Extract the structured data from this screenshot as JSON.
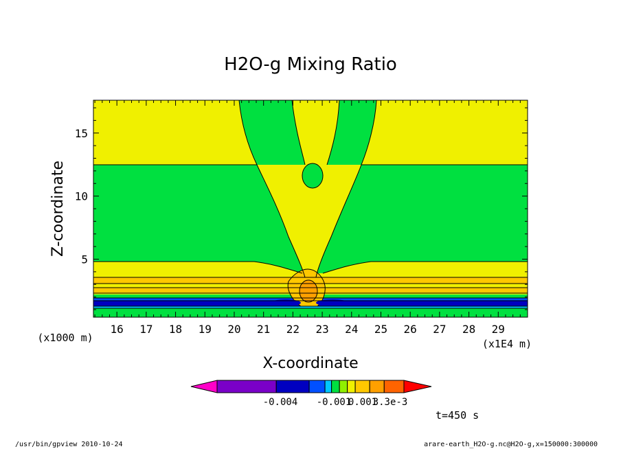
{
  "chart_data": {
    "type": "heatmap",
    "title": "H2O-g Mixing Ratio",
    "xlabel": "X-coordinate",
    "ylabel": "Z-coordinate",
    "x_unit": "(x1E4 m)",
    "y_unit": "(x1000 m)",
    "xlim": [
      15.2,
      30.0
    ],
    "ylim": [
      0.4,
      17.6
    ],
    "x_ticks": [
      "16",
      "17",
      "18",
      "19",
      "20",
      "21",
      "22",
      "23",
      "24",
      "25",
      "26",
      "27",
      "28",
      "29"
    ],
    "y_ticks": [
      "5",
      "10",
      "15"
    ],
    "grid": false,
    "colorbar": {
      "labels": [
        "-0.004",
        "-0.001",
        "0.001",
        "3.3e-3"
      ],
      "colors": [
        "#ff00c8",
        "#7a00c8",
        "#0000c0",
        "#0050ff",
        "#00c8ff",
        "#00e040",
        "#90f000",
        "#f0f000",
        "#ffc800",
        "#ffa000",
        "#ff6400",
        "#ff0000"
      ]
    },
    "colors": {
      "green": "#00e040",
      "yellow": "#f0f000",
      "light_yellow": "#ffff00",
      "orange": "#ffa000",
      "blue": "#0000c0"
    },
    "time_label": "t=450 s"
  },
  "footer": {
    "left": "/usr/bin/gpview   2010-10-24",
    "right": "arare-earth_H2O-g.nc@H2O-g,x=150000:300000"
  }
}
